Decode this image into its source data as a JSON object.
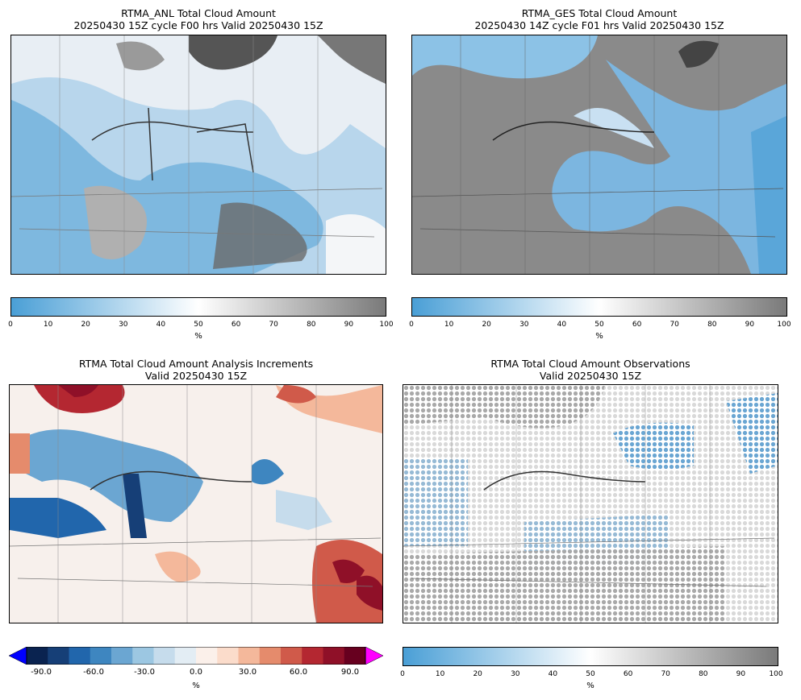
{
  "panels": [
    {
      "title_line1": "RTMA_ANL Total Cloud Amount",
      "title_line2": "20250430 15Z cycle F00 hrs Valid 20250430 15Z"
    },
    {
      "title_line1": "RTMA_GES Total Cloud Amount",
      "title_line2": "20250430 14Z cycle F01 hrs Valid 20250430 15Z"
    },
    {
      "title_line1": "RTMA Total Cloud Amount Analysis Increments",
      "title_line2": "Valid 20250430 15Z"
    },
    {
      "title_line1": "RTMA Total Cloud Amount Observations",
      "title_line2": "Valid 20250430 15Z"
    }
  ],
  "cloud_colorbar": {
    "ticks": [
      "0",
      "10",
      "20",
      "30",
      "40",
      "50",
      "60",
      "70",
      "80",
      "90",
      "100"
    ],
    "unit": "%",
    "colors": {
      "low": "#4a9fd6",
      "mid": "#ffffff",
      "high": "#7a7a7a"
    }
  },
  "increment_colorbar": {
    "ticks": [
      "-90.0",
      "-60.0",
      "-30.0",
      "0.0",
      "30.0",
      "60.0",
      "90.0"
    ],
    "unit": "%",
    "colors": [
      "#0a2350",
      "#163f77",
      "#2166ac",
      "#3e86c0",
      "#6ba6d2",
      "#9cc7e2",
      "#c6dcec",
      "#e3edf4",
      "#fbf0ea",
      "#fbdccb",
      "#f4b89b",
      "#e58b6c",
      "#d05a4a",
      "#b42731",
      "#8f1028",
      "#67001f"
    ],
    "under_color": "#0000ff",
    "over_color": "#ff00ff"
  }
}
